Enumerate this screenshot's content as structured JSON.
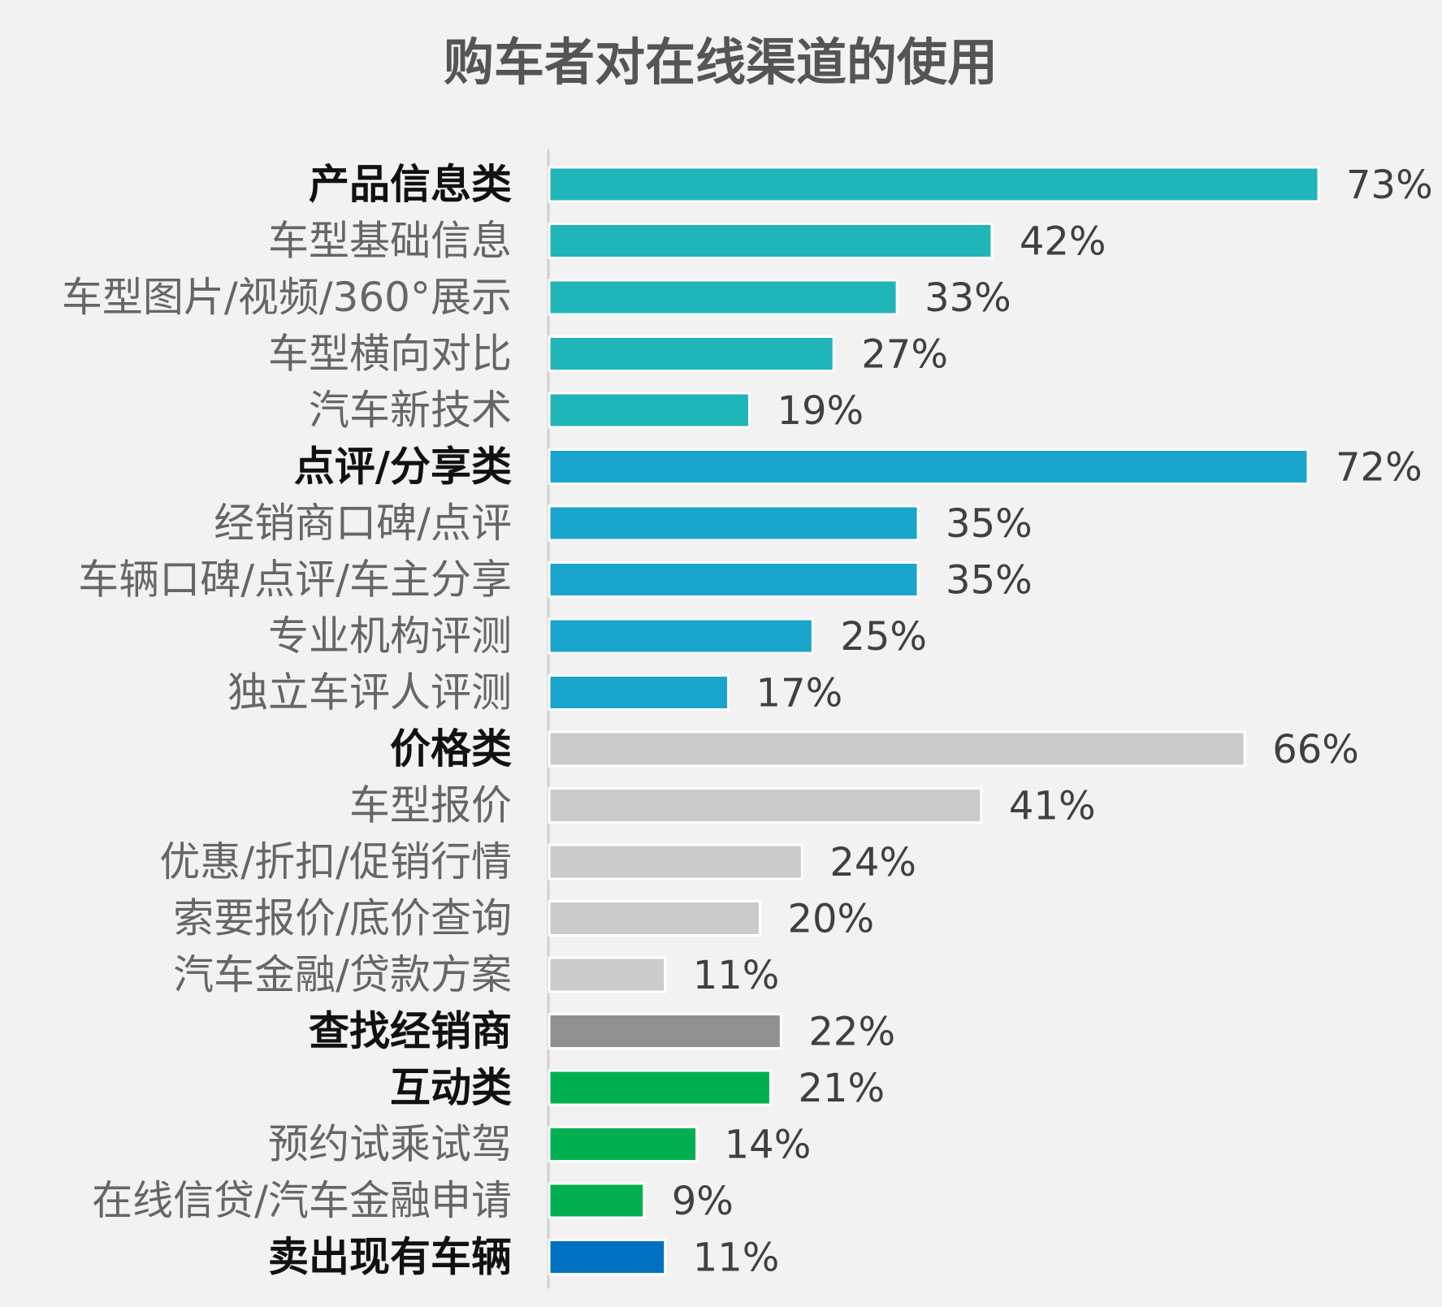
{
  "chart_data": {
    "type": "bar",
    "orientation": "horizontal",
    "title": "购车者对在线渠道的使用",
    "xlabel": "",
    "ylabel": "",
    "xlim": [
      0,
      73
    ],
    "grid": false,
    "legend": "none",
    "value_suffix": "%",
    "categories": [
      "产品信息类",
      "车型基础信息",
      "车型图片/视频/360°展示",
      "车型横向对比",
      "汽车新技术",
      "点评/分享类",
      "经销商口碑/点评",
      "车辆口碑/点评/车主分享",
      "专业机构评测",
      "独立车评人评测",
      "价格类",
      "车型报价",
      "优惠/折扣/促销行情",
      "索要报价/底价查询",
      "汽车金融/贷款方案",
      "查找经销商",
      "互动类",
      "预约试乘试驾",
      "在线信贷/汽车金融申请",
      "卖出现有车辆"
    ],
    "values": [
      73,
      42,
      33,
      27,
      19,
      72,
      35,
      35,
      25,
      17,
      66,
      41,
      24,
      20,
      11,
      22,
      21,
      14,
      9,
      11
    ],
    "bold_categories": [
      "产品信息类",
      "点评/分享类",
      "价格类",
      "查找经销商",
      "互动类",
      "卖出现有车辆"
    ],
    "bar_colors": [
      "#20b5b8",
      "#20b5b8",
      "#20b5b8",
      "#20b5b8",
      "#20b5b8",
      "#1aa5cc",
      "#1aa5cc",
      "#1aa5cc",
      "#1aa5cc",
      "#1aa5cc",
      "#cbcbcb",
      "#cbcbcb",
      "#cbcbcb",
      "#cbcbcb",
      "#cbcbcb",
      "#909090",
      "#00b050",
      "#00b050",
      "#00b050",
      "#0070c0"
    ]
  },
  "colors": {
    "background": "#f2f2f2",
    "title": "#555555",
    "bold_label": "#111111",
    "regular_label": "#666666",
    "value_label": "#404040",
    "axis": "#d0d0d0"
  }
}
